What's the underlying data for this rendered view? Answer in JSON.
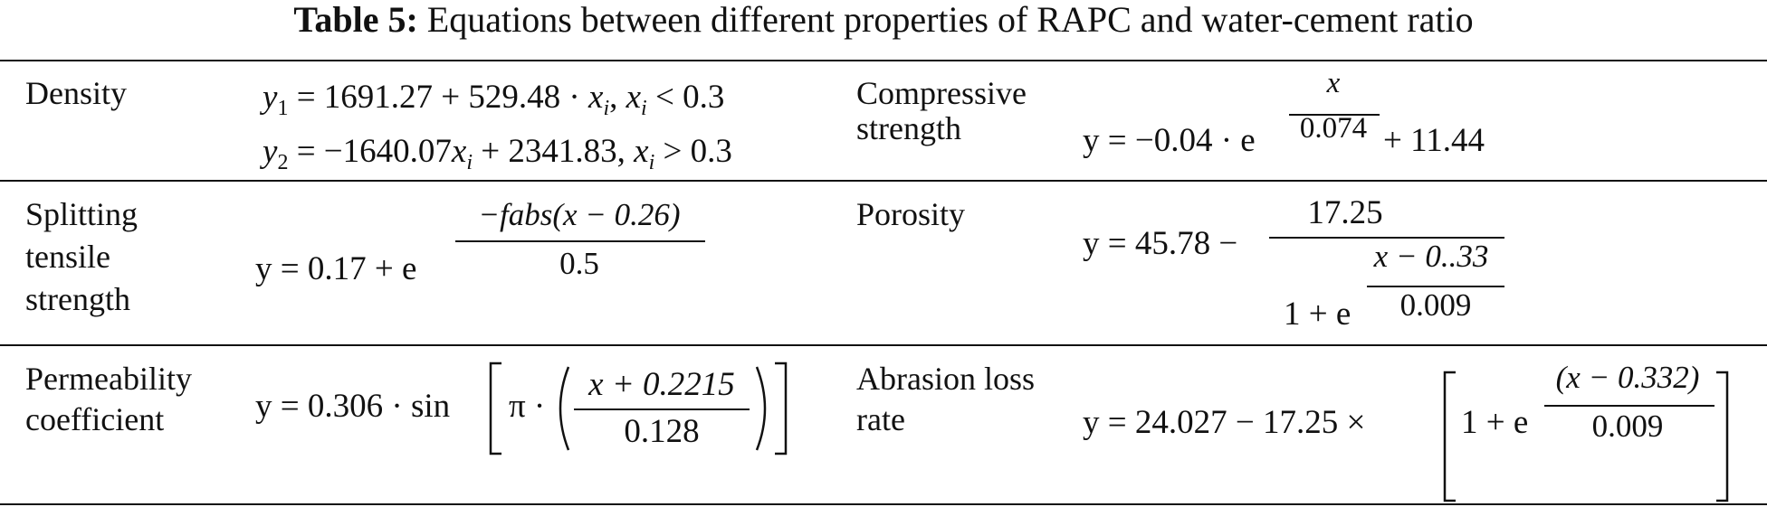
{
  "caption": {
    "label": "Table 5:",
    "text": "Equations between different properties of RAPC and water-cement ratio"
  },
  "rows": [
    {
      "left_name": [
        "Density"
      ],
      "left_eq": {
        "line1_pre": "y",
        "line1_sub": "1",
        "line1_rest": " = 1691.27 + 529.48 · ",
        "line1_x": "x",
        "line1_xsub": "i",
        "line1_sep": ", ",
        "line1_x2": "x",
        "line1_x2sub": "i",
        "line1_cond": " < 0.3",
        "line2_pre": "y",
        "line2_sub": "2",
        "line2_rest": " = −1640.07",
        "line2_x": "x",
        "line2_xsub": "i",
        "line2_mid": " + 2341.83, ",
        "line2_x2": "x",
        "line2_x2sub": "i",
        "line2_cond": " > 0.3"
      },
      "right_name": [
        "Compressive",
        "strength"
      ],
      "right_eq": {
        "lhs": "y = −0.04 · e",
        "exp_num": "x",
        "exp_den": "0.074",
        "tail": " + 11.44"
      }
    },
    {
      "left_name": [
        "Splitting",
        "tensile",
        "strength"
      ],
      "left_eq": {
        "lhs": "y = 0.17 + e",
        "exp_num": "−fabs(x − 0.26)",
        "exp_den": "0.5"
      },
      "right_name": [
        "Porosity"
      ],
      "right_eq": {
        "lhs": "y = 45.78 − ",
        "num": "17.25",
        "den_lhs": "1 + e",
        "exp_num": "x − 0..33",
        "exp_den": "0.009"
      }
    },
    {
      "left_name": [
        "Permeability",
        "coefficient"
      ],
      "left_eq": {
        "lhs": "y = 0.306 · sin",
        "inner": "π · ",
        "num": "x + 0.2215",
        "den": "0.128"
      },
      "right_name": [
        "Abrasion loss",
        "rate"
      ],
      "right_eq": {
        "lhs": "y = 24.027 − 17.25 × ",
        "inner": "1 + e",
        "exp_num": "(x − 0.332)",
        "exp_den": "0.009"
      }
    }
  ]
}
